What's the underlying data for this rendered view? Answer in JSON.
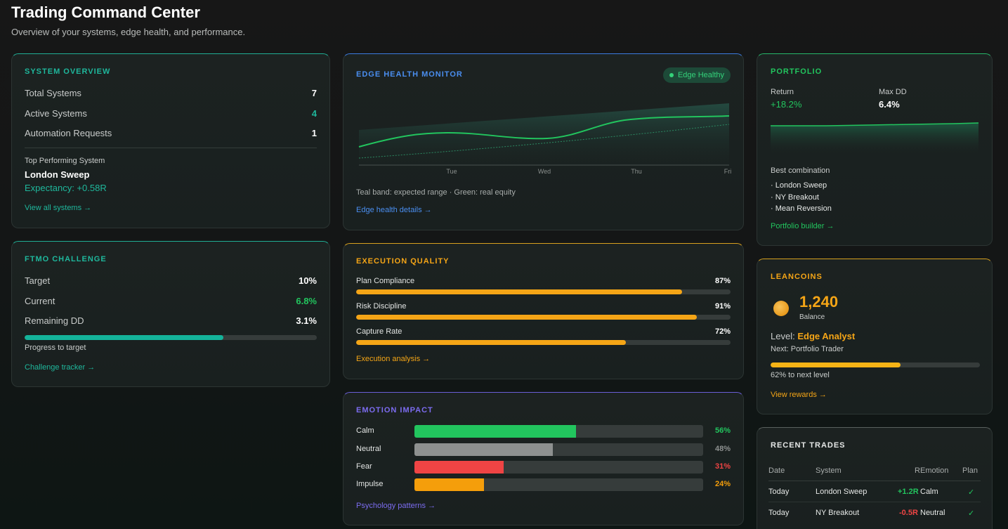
{
  "header": {
    "title": "Trading Command Center",
    "subtitle": "Overview of your systems, edge health, and performance."
  },
  "colors": {
    "teal": "#1fb79c",
    "blue": "#4a8ef0",
    "green": "#22c55e",
    "amber": "#f5a516",
    "purple": "#7c6cf0",
    "red": "#ef4444",
    "gray": "#8e9190"
  },
  "system_overview": {
    "title": "SYSTEM OVERVIEW",
    "rows": [
      {
        "label": "Total Systems",
        "value": "7"
      },
      {
        "label": "Active Systems",
        "value": "4"
      },
      {
        "label": "Automation Requests",
        "value": "1"
      }
    ],
    "top_label": "Top Performing System",
    "top_name": "London Sweep",
    "top_expectancy": "Expectancy: +0.58R",
    "link": "View all systems →"
  },
  "ftmo": {
    "title": "FTMO CHALLENGE",
    "rows": [
      {
        "label": "Target",
        "value": "10%"
      },
      {
        "label": "Current",
        "value": "6.8%"
      },
      {
        "label": "Remaining DD",
        "value": "3.1%"
      }
    ],
    "progress": 0.68,
    "progress_label": "Progress to target",
    "link": "Challenge tracker →"
  },
  "edge_health": {
    "title": "EDGE HEALTH MONITOR",
    "badge": "Edge Healthy",
    "x_ticks": [
      "Tue",
      "Wed",
      "Thu",
      "Fri"
    ],
    "caption": "Teal band: expected range · Green: real equity",
    "link": "Edge health details →"
  },
  "execution": {
    "title": "EXECUTION QUALITY",
    "rows": [
      {
        "label": "Plan Compliance",
        "value": "87%",
        "pct": 87
      },
      {
        "label": "Risk Discipline",
        "value": "91%",
        "pct": 91
      },
      {
        "label": "Capture Rate",
        "value": "72%",
        "pct": 72
      }
    ],
    "link": "Execution analysis →"
  },
  "emotion": {
    "title": "EMOTION IMPACT",
    "rows": [
      {
        "label": "Calm",
        "value": "56%",
        "pct": 56,
        "color": "#22c55e"
      },
      {
        "label": "Neutral",
        "value": "48%",
        "pct": 48,
        "color": "#8e9190"
      },
      {
        "label": "Fear",
        "value": "31%",
        "pct": 31,
        "color": "#ef4444"
      },
      {
        "label": "Impulse",
        "value": "24%",
        "pct": 24,
        "color": "#f59e0b"
      }
    ],
    "link": "Psychology patterns →"
  },
  "portfolio": {
    "title": "PORTFOLIO",
    "return_label": "Return",
    "return_value": "+18.2%",
    "maxdd_label": "Max DD",
    "maxdd_value": "6.4%",
    "combo_label": "Best combination",
    "combo": [
      "· London Sweep",
      "· NY Breakout",
      "· Mean Reversion"
    ],
    "link": "Portfolio builder →"
  },
  "leancoins": {
    "title": "LEANCOINS",
    "balance": "1,240",
    "balance_label": "Balance",
    "level_label": "Level:",
    "level_value": "Edge Analyst",
    "next": "Next: Portfolio Trader",
    "progress": 0.62,
    "progress_label": "62% to next level",
    "link": "View rewards →"
  },
  "recent_trades": {
    "title": "RECENT TRADES",
    "columns": [
      "Date",
      "System",
      "R",
      "Emotion",
      "Plan"
    ],
    "rows": [
      {
        "date": "Today",
        "system": "London Sweep",
        "r": "+1.2R",
        "emotion": "Calm",
        "plan": "✓"
      },
      {
        "date": "Today",
        "system": "NY Breakout",
        "r": "-0.5R",
        "emotion": "Neutral",
        "plan": "✓"
      }
    ]
  }
}
